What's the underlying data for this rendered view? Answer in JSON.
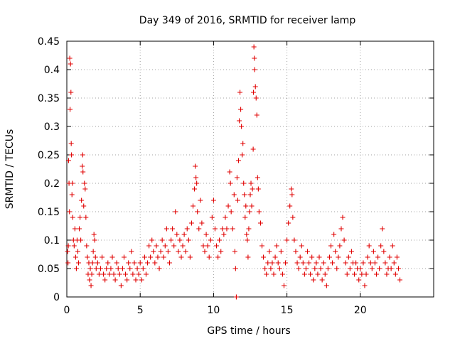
{
  "chart_data": {
    "type": "scatter",
    "title": "Day 349 of 2016, SRMTID for receiver lamp",
    "xlabel": "GPS time / hours",
    "ylabel": "SRMTID / TECUs",
    "xlim": [
      0,
      25
    ],
    "ylim": [
      0,
      0.45
    ],
    "x_ticks": [
      0,
      5,
      10,
      15,
      20
    ],
    "x_tick_labels": [
      "0",
      "5",
      "10",
      "15",
      "20"
    ],
    "y_ticks": [
      0,
      0.05,
      0.1,
      0.15,
      0.2,
      0.25,
      0.3,
      0.35,
      0.4,
      0.45
    ],
    "y_tick_labels": [
      "0",
      "0.05",
      "0.1",
      "0.15",
      "0.2",
      "0.25",
      "0.3",
      "0.35",
      "0.4",
      "0.45"
    ],
    "grid": true,
    "marker": "plus",
    "color": "#e00000",
    "series": [
      {
        "name": "SRMTID",
        "points": [
          [
            0.05,
            0.08
          ],
          [
            0.08,
            0.06
          ],
          [
            0.1,
            0.09
          ],
          [
            0.12,
            0.24
          ],
          [
            0.15,
            0.2
          ],
          [
            0.18,
            0.15
          ],
          [
            0.2,
            0.42
          ],
          [
            0.22,
            0.33
          ],
          [
            0.25,
            0.41
          ],
          [
            0.28,
            0.36
          ],
          [
            0.3,
            0.27
          ],
          [
            0.32,
            0.25
          ],
          [
            0.35,
            0.18
          ],
          [
            0.38,
            0.2
          ],
          [
            0.4,
            0.14
          ],
          [
            0.45,
            0.1
          ],
          [
            0.5,
            0.09
          ],
          [
            0.55,
            0.12
          ],
          [
            0.6,
            0.07
          ],
          [
            0.65,
            0.05
          ],
          [
            0.7,
            0.1
          ],
          [
            0.75,
            0.08
          ],
          [
            0.8,
            0.06
          ],
          [
            0.85,
            0.12
          ],
          [
            0.9,
            0.14
          ],
          [
            0.95,
            0.1
          ],
          [
            1.0,
            0.17
          ],
          [
            1.05,
            0.23
          ],
          [
            1.08,
            0.25
          ],
          [
            1.1,
            0.22
          ],
          [
            1.15,
            0.16
          ],
          [
            1.2,
            0.2
          ],
          [
            1.25,
            0.19
          ],
          [
            1.3,
            0.14
          ],
          [
            1.35,
            0.09
          ],
          [
            1.4,
            0.07
          ],
          [
            1.45,
            0.04
          ],
          [
            1.5,
            0.06
          ],
          [
            1.55,
            0.03
          ],
          [
            1.6,
            0.05
          ],
          [
            1.65,
            0.02
          ],
          [
            1.7,
            0.04
          ],
          [
            1.75,
            0.06
          ],
          [
            1.8,
            0.08
          ],
          [
            1.85,
            0.11
          ],
          [
            1.9,
            0.1
          ],
          [
            1.95,
            0.07
          ],
          [
            2.0,
            0.05
          ],
          [
            2.1,
            0.06
          ],
          [
            2.2,
            0.04
          ],
          [
            2.3,
            0.05
          ],
          [
            2.4,
            0.07
          ],
          [
            2.5,
            0.04
          ],
          [
            2.6,
            0.03
          ],
          [
            2.7,
            0.05
          ],
          [
            2.8,
            0.06
          ],
          [
            2.9,
            0.04
          ],
          [
            3.0,
            0.05
          ],
          [
            3.1,
            0.07
          ],
          [
            3.2,
            0.04
          ],
          [
            3.3,
            0.03
          ],
          [
            3.4,
            0.06
          ],
          [
            3.5,
            0.05
          ],
          [
            3.6,
            0.04
          ],
          [
            3.7,
            0.02
          ],
          [
            3.8,
            0.05
          ],
          [
            3.9,
            0.07
          ],
          [
            4.0,
            0.04
          ],
          [
            4.1,
            0.03
          ],
          [
            4.2,
            0.06
          ],
          [
            4.3,
            0.05
          ],
          [
            4.4,
            0.08
          ],
          [
            4.5,
            0.04
          ],
          [
            4.6,
            0.06
          ],
          [
            4.7,
            0.03
          ],
          [
            4.8,
            0.05
          ],
          [
            4.9,
            0.04
          ],
          [
            5.0,
            0.06
          ],
          [
            5.1,
            0.03
          ],
          [
            5.2,
            0.05
          ],
          [
            5.3,
            0.07
          ],
          [
            5.4,
            0.04
          ],
          [
            5.5,
            0.06
          ],
          [
            5.6,
            0.09
          ],
          [
            5.7,
            0.07
          ],
          [
            5.8,
            0.1
          ],
          [
            5.9,
            0.08
          ],
          [
            6.0,
            0.06
          ],
          [
            6.1,
            0.09
          ],
          [
            6.2,
            0.07
          ],
          [
            6.3,
            0.05
          ],
          [
            6.4,
            0.08
          ],
          [
            6.5,
            0.1
          ],
          [
            6.6,
            0.07
          ],
          [
            6.7,
            0.09
          ],
          [
            6.8,
            0.12
          ],
          [
            6.9,
            0.08
          ],
          [
            7.0,
            0.06
          ],
          [
            7.1,
            0.1
          ],
          [
            7.2,
            0.12
          ],
          [
            7.3,
            0.09
          ],
          [
            7.4,
            0.15
          ],
          [
            7.5,
            0.11
          ],
          [
            7.6,
            0.08
          ],
          [
            7.7,
            0.1
          ],
          [
            7.8,
            0.07
          ],
          [
            7.9,
            0.09
          ],
          [
            8.0,
            0.11
          ],
          [
            8.1,
            0.08
          ],
          [
            8.2,
            0.12
          ],
          [
            8.3,
            0.1
          ],
          [
            8.4,
            0.07
          ],
          [
            8.5,
            0.13
          ],
          [
            8.6,
            0.16
          ],
          [
            8.7,
            0.19
          ],
          [
            8.75,
            0.23
          ],
          [
            8.8,
            0.21
          ],
          [
            8.85,
            0.2
          ],
          [
            8.9,
            0.15
          ],
          [
            9.0,
            0.12
          ],
          [
            9.1,
            0.17
          ],
          [
            9.2,
            0.13
          ],
          [
            9.3,
            0.09
          ],
          [
            9.4,
            0.08
          ],
          [
            9.5,
            0.11
          ],
          [
            9.6,
            0.09
          ],
          [
            9.7,
            0.07
          ],
          [
            9.8,
            0.1
          ],
          [
            9.9,
            0.14
          ],
          [
            10.0,
            0.17
          ],
          [
            10.1,
            0.12
          ],
          [
            10.2,
            0.09
          ],
          [
            10.3,
            0.07
          ],
          [
            10.4,
            0.1
          ],
          [
            10.5,
            0.08
          ],
          [
            10.6,
            0.12
          ],
          [
            10.7,
            0.11
          ],
          [
            10.8,
            0.14
          ],
          [
            10.9,
            0.12
          ],
          [
            11.0,
            0.16
          ],
          [
            11.1,
            0.22
          ],
          [
            11.15,
            0.2
          ],
          [
            11.2,
            0.15
          ],
          [
            11.3,
            0.12
          ],
          [
            11.4,
            0.18
          ],
          [
            11.45,
            0.08
          ],
          [
            11.5,
            0.05
          ],
          [
            11.55,
            0.0
          ],
          [
            11.6,
            0.21
          ],
          [
            11.65,
            0.17
          ],
          [
            11.7,
            0.24
          ],
          [
            11.75,
            0.31
          ],
          [
            11.8,
            0.36
          ],
          [
            11.85,
            0.33
          ],
          [
            11.9,
            0.3
          ],
          [
            11.95,
            0.25
          ],
          [
            12.0,
            0.27
          ],
          [
            12.05,
            0.2
          ],
          [
            12.1,
            0.18
          ],
          [
            12.15,
            0.14
          ],
          [
            12.2,
            0.16
          ],
          [
            12.25,
            0.11
          ],
          [
            12.3,
            0.1
          ],
          [
            12.35,
            0.07
          ],
          [
            12.4,
            0.12
          ],
          [
            12.45,
            0.15
          ],
          [
            12.5,
            0.18
          ],
          [
            12.55,
            0.2
          ],
          [
            12.6,
            0.16
          ],
          [
            12.65,
            0.19
          ],
          [
            12.7,
            0.26
          ],
          [
            12.72,
            0.36
          ],
          [
            12.75,
            0.44
          ],
          [
            12.78,
            0.42
          ],
          [
            12.8,
            0.4
          ],
          [
            12.85,
            0.37
          ],
          [
            12.9,
            0.35
          ],
          [
            12.95,
            0.32
          ],
          [
            13.0,
            0.21
          ],
          [
            13.05,
            0.19
          ],
          [
            13.1,
            0.15
          ],
          [
            13.2,
            0.13
          ],
          [
            13.3,
            0.09
          ],
          [
            13.4,
            0.07
          ],
          [
            13.5,
            0.05
          ],
          [
            13.6,
            0.04
          ],
          [
            13.7,
            0.06
          ],
          [
            13.8,
            0.08
          ],
          [
            13.9,
            0.05
          ],
          [
            14.0,
            0.06
          ],
          [
            14.1,
            0.04
          ],
          [
            14.2,
            0.07
          ],
          [
            14.3,
            0.09
          ],
          [
            14.4,
            0.06
          ],
          [
            14.5,
            0.05
          ],
          [
            14.6,
            0.08
          ],
          [
            14.7,
            0.04
          ],
          [
            14.8,
            0.02
          ],
          [
            14.9,
            0.06
          ],
          [
            15.0,
            0.1
          ],
          [
            15.1,
            0.13
          ],
          [
            15.2,
            0.16
          ],
          [
            15.3,
            0.19
          ],
          [
            15.35,
            0.18
          ],
          [
            15.4,
            0.14
          ],
          [
            15.5,
            0.1
          ],
          [
            15.6,
            0.08
          ],
          [
            15.7,
            0.06
          ],
          [
            15.8,
            0.05
          ],
          [
            15.9,
            0.07
          ],
          [
            16.0,
            0.09
          ],
          [
            16.1,
            0.06
          ],
          [
            16.2,
            0.04
          ],
          [
            16.3,
            0.05
          ],
          [
            16.4,
            0.08
          ],
          [
            16.5,
            0.06
          ],
          [
            16.6,
            0.04
          ],
          [
            16.7,
            0.07
          ],
          [
            16.8,
            0.03
          ],
          [
            16.9,
            0.05
          ],
          [
            17.0,
            0.06
          ],
          [
            17.1,
            0.04
          ],
          [
            17.2,
            0.07
          ],
          [
            17.3,
            0.05
          ],
          [
            17.4,
            0.03
          ],
          [
            17.5,
            0.06
          ],
          [
            17.6,
            0.04
          ],
          [
            17.7,
            0.02
          ],
          [
            17.8,
            0.05
          ],
          [
            17.9,
            0.07
          ],
          [
            18.0,
            0.09
          ],
          [
            18.1,
            0.06
          ],
          [
            18.2,
            0.11
          ],
          [
            18.3,
            0.08
          ],
          [
            18.4,
            0.05
          ],
          [
            18.5,
            0.07
          ],
          [
            18.6,
            0.09
          ],
          [
            18.7,
            0.12
          ],
          [
            18.8,
            0.14
          ],
          [
            18.9,
            0.1
          ],
          [
            19.0,
            0.06
          ],
          [
            19.1,
            0.04
          ],
          [
            19.2,
            0.07
          ],
          [
            19.3,
            0.05
          ],
          [
            19.4,
            0.08
          ],
          [
            19.5,
            0.06
          ],
          [
            19.6,
            0.04
          ],
          [
            19.7,
            0.06
          ],
          [
            19.8,
            0.05
          ],
          [
            19.9,
            0.03
          ],
          [
            20.0,
            0.05
          ],
          [
            20.1,
            0.04
          ],
          [
            20.2,
            0.06
          ],
          [
            20.3,
            0.02
          ],
          [
            20.4,
            0.04
          ],
          [
            20.5,
            0.07
          ],
          [
            20.6,
            0.09
          ],
          [
            20.7,
            0.06
          ],
          [
            20.8,
            0.05
          ],
          [
            20.9,
            0.08
          ],
          [
            21.0,
            0.06
          ],
          [
            21.1,
            0.04
          ],
          [
            21.2,
            0.07
          ],
          [
            21.3,
            0.05
          ],
          [
            21.4,
            0.09
          ],
          [
            21.5,
            0.12
          ],
          [
            21.6,
            0.08
          ],
          [
            21.7,
            0.06
          ],
          [
            21.8,
            0.04
          ],
          [
            21.9,
            0.05
          ],
          [
            22.0,
            0.07
          ],
          [
            22.1,
            0.05
          ],
          [
            22.2,
            0.09
          ],
          [
            22.3,
            0.06
          ],
          [
            22.4,
            0.04
          ],
          [
            22.5,
            0.07
          ],
          [
            22.6,
            0.05
          ],
          [
            22.7,
            0.03
          ]
        ]
      }
    ]
  }
}
